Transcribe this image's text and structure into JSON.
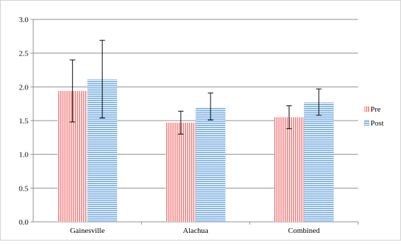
{
  "chart_data": {
    "type": "bar",
    "categories": [
      "Gainesville",
      "Alachua",
      "Combined"
    ],
    "series": [
      {
        "name": "Pre",
        "values": [
          1.94,
          1.47,
          1.55
        ],
        "error_low": [
          1.48,
          1.3,
          1.38
        ],
        "error_high": [
          2.4,
          1.64,
          1.72
        ],
        "color": "#f08080",
        "pattern": "vertical-stripes"
      },
      {
        "name": "Post",
        "values": [
          2.11,
          1.7,
          1.77
        ],
        "error_low": [
          1.54,
          1.51,
          1.58
        ],
        "error_high": [
          2.69,
          1.91,
          1.97
        ],
        "color": "#6fa8dc",
        "pattern": "horizontal-stripes"
      }
    ],
    "y_ticks": [
      "0.0",
      "0.5",
      "1.0",
      "1.5",
      "2.0",
      "2.5",
      "3.0"
    ],
    "ylim": [
      0,
      3
    ],
    "grid": true,
    "legend_position": "right",
    "error_bars": true
  }
}
